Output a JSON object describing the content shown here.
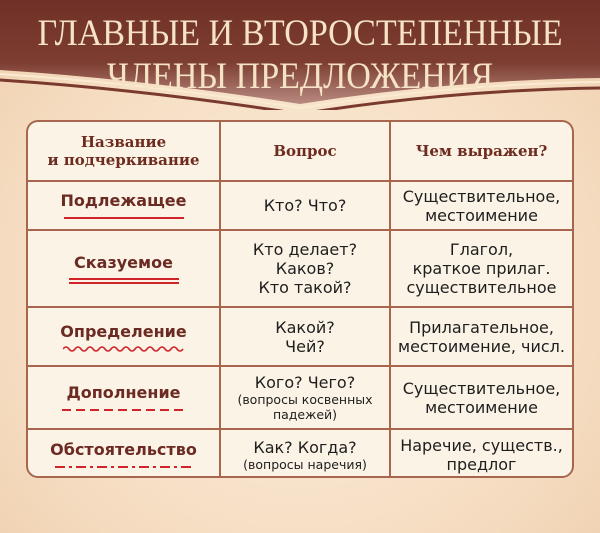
{
  "title": {
    "line1": "ГЛАВНЫЕ И ВТОРОСТЕПЕННЫЕ",
    "line2": "ЧЛЕНЫ ПРЕДЛОЖЕНИЯ"
  },
  "colors": {
    "banner": "#7a3a2e",
    "background": "#f6dcbf",
    "cell": "#fbf3e6",
    "border": "#a8664f",
    "underline": "#d0232a"
  },
  "table": {
    "headers": [
      "Название\nи подчеркивание",
      "Вопрос",
      "Чем выражен?"
    ],
    "header_name_line1": "Название",
    "header_name_line2": "и подчеркивание",
    "rows": [
      {
        "name": "Подлежащее",
        "underline": "single-line",
        "question": [
          "Кто? Что?"
        ],
        "question_note": "",
        "expressed": [
          "Существительное,",
          "местоимение"
        ]
      },
      {
        "name": "Сказуемое",
        "underline": "double-line",
        "question": [
          "Кто делает?",
          "Каков?",
          "Кто такой?"
        ],
        "question_note": "",
        "expressed": [
          "Глагол,",
          "краткое прилаг.",
          "существительное"
        ]
      },
      {
        "name": "Определение",
        "underline": "wavy-line",
        "question": [
          "Какой?",
          "Чей?"
        ],
        "question_note": "",
        "expressed": [
          "Прилагательное,",
          "местоимение, числ."
        ]
      },
      {
        "name": "Дополнение",
        "underline": "dashed-line",
        "question": [
          "Кого? Чего?"
        ],
        "question_note": "(вопросы косвенных падежей)",
        "expressed": [
          "Существительное,",
          "местоимение"
        ]
      },
      {
        "name": "Обстоятельство",
        "underline": "dash-dot-line",
        "question": [
          "Как? Когда?"
        ],
        "question_note": "(вопросы наречия)",
        "expressed": [
          "Наречие, существ.,",
          "предлог"
        ]
      }
    ]
  }
}
